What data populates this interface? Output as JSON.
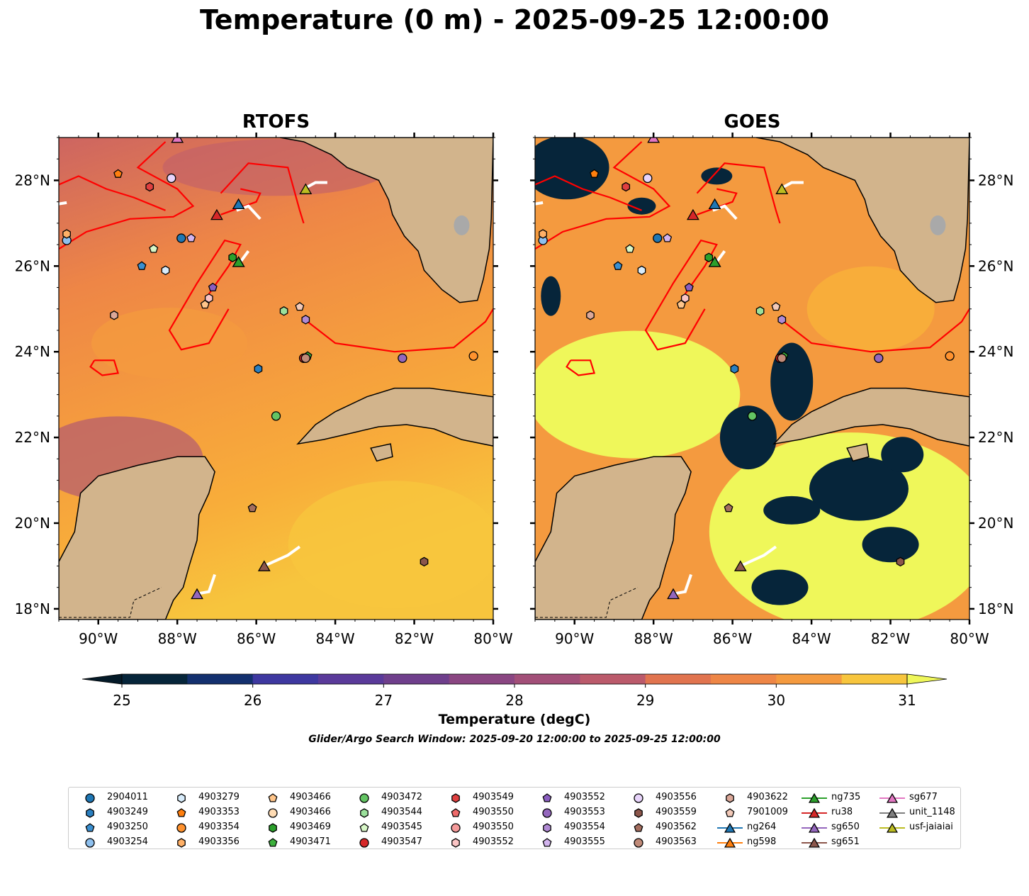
{
  "title": "Temperature (0 m) - 2025-09-25 12:00:00",
  "panels": [
    {
      "name": "RTOFS"
    },
    {
      "name": "GOES"
    }
  ],
  "axes": {
    "lon_ticks": [
      "90°W",
      "88°W",
      "86°W",
      "84°W",
      "82°W",
      "80°W"
    ],
    "lat_ticks": [
      "28°N",
      "26°N",
      "24°N",
      "22°N",
      "20°N",
      "18°N"
    ],
    "lon_range": [
      -91,
      -80
    ],
    "lat_range": [
      17.75,
      29
    ]
  },
  "colorbar": {
    "label": "Temperature (degC)",
    "ticks": [
      "25",
      "26",
      "27",
      "28",
      "29",
      "30",
      "31"
    ],
    "range": [
      25,
      31
    ],
    "step": 0.5,
    "extend": "both",
    "colors": [
      "#06253a",
      "#13306e",
      "#2b358f",
      "#3e38a0",
      "#5a3a9a",
      "#6f3f8c",
      "#8a4682",
      "#a24f78",
      "#bb5a6b",
      "#cd6561",
      "#e1744f",
      "#ee8646",
      "#f49a3f",
      "#f8ad3a",
      "#f7c53d",
      "#eff75a"
    ],
    "under_color": "#041a28",
    "over_color": "#eff75a"
  },
  "search_window": "Glider/Argo Search Window: 2025-09-20 12:00:00 to 2025-09-25 12:00:00",
  "legend": [
    {
      "label": "2904011",
      "marker": "circle",
      "color": "#1f77b4"
    },
    {
      "label": "4903249",
      "marker": "hexagon",
      "color": "#2a7fc0"
    },
    {
      "label": "4903250",
      "marker": "pentagon",
      "color": "#3a8fd0"
    },
    {
      "label": "4903254",
      "marker": "circle",
      "color": "#8ec0ee"
    },
    {
      "label": "4903279",
      "marker": "hexagon",
      "color": "#d8ecfb"
    },
    {
      "label": "4903353",
      "marker": "pentagon",
      "color": "#ff7f0e"
    },
    {
      "label": "4903354",
      "marker": "circle",
      "color": "#ff922e"
    },
    {
      "label": "4903356",
      "marker": "hexagon",
      "color": "#ffb066"
    },
    {
      "label": "4903466",
      "marker": "pentagon",
      "color": "#ffc58a"
    },
    {
      "label": "4903466",
      "marker": "circle",
      "color": "#ffdcb4"
    },
    {
      "label": "4903469",
      "marker": "hexagon",
      "color": "#2ca02c"
    },
    {
      "label": "4903471",
      "marker": "pentagon",
      "color": "#3cb03c"
    },
    {
      "label": "4903472",
      "marker": "circle",
      "color": "#63c463"
    },
    {
      "label": "4903544",
      "marker": "hexagon",
      "color": "#9be09b"
    },
    {
      "label": "4903545",
      "marker": "pentagon",
      "color": "#d8f7c8"
    },
    {
      "label": "4903547",
      "marker": "circle",
      "color": "#d62728"
    },
    {
      "label": "4903549",
      "marker": "hexagon",
      "color": "#e04040"
    },
    {
      "label": "4903550",
      "marker": "pentagon",
      "color": "#ee6a6a"
    },
    {
      "label": "4903550",
      "marker": "circle",
      "color": "#f49a9a"
    },
    {
      "label": "4903552",
      "marker": "hexagon",
      "color": "#fac4c4"
    },
    {
      "label": "4903552",
      "marker": "pentagon",
      "color": "#8a5ec0"
    },
    {
      "label": "4903553",
      "marker": "circle",
      "color": "#9467bd"
    },
    {
      "label": "4903554",
      "marker": "hexagon",
      "color": "#b08ad4"
    },
    {
      "label": "4903555",
      "marker": "pentagon",
      "color": "#d2b4ee"
    },
    {
      "label": "4903556",
      "marker": "circle",
      "color": "#e8d4fb"
    },
    {
      "label": "4903559",
      "marker": "hexagon",
      "color": "#8c564b"
    },
    {
      "label": "4903562",
      "marker": "pentagon",
      "color": "#a46e5f"
    },
    {
      "label": "4903563",
      "marker": "circle",
      "color": "#c08a78"
    },
    {
      "label": "4903622",
      "marker": "hexagon",
      "color": "#dba899"
    },
    {
      "label": "7901009",
      "marker": "pentagon",
      "color": "#f2c9b8"
    },
    {
      "label": "ng264",
      "marker": "triangle",
      "color": "#1f77b4"
    },
    {
      "label": "ng598",
      "marker": "triangle",
      "color": "#ff7f0e"
    },
    {
      "label": "ng735",
      "marker": "triangle",
      "color": "#2ca02c"
    },
    {
      "label": "ru38",
      "marker": "triangle",
      "color": "#d62728"
    },
    {
      "label": "sg650",
      "marker": "triangle",
      "color": "#9467bd"
    },
    {
      "label": "sg651",
      "marker": "triangle",
      "color": "#8c564b"
    },
    {
      "label": "sg677",
      "marker": "triangle",
      "color": "#e377c2"
    },
    {
      "label": "unit_1148",
      "marker": "triangle",
      "color": "#7f7f7f"
    },
    {
      "label": "usf-jaiaiai",
      "marker": "triangle",
      "color": "#bcbd22"
    }
  ],
  "platforms": [
    {
      "id": "2904011",
      "lon": -87.9,
      "lat": 26.65
    },
    {
      "id": "4903249",
      "lon": -85.95,
      "lat": 23.6
    },
    {
      "id": "4903250",
      "lon": -88.9,
      "lat": 26.0
    },
    {
      "id": "4903254",
      "lon": -90.8,
      "lat": 26.6
    },
    {
      "id": "4903279",
      "lon": -88.3,
      "lat": 25.9
    },
    {
      "id": "4903353",
      "lon": -89.5,
      "lat": 28.15
    },
    {
      "id": "4903354",
      "lon": -80.5,
      "lat": 23.9
    },
    {
      "id": "4903356",
      "lon": -90.8,
      "lat": 26.75
    },
    {
      "id": "4903466",
      "lon": -87.3,
      "lat": 25.1
    },
    {
      "id": "4903469",
      "lon": -86.6,
      "lat": 26.2
    },
    {
      "id": "4903471",
      "lon": -84.7,
      "lat": 23.9
    },
    {
      "id": "4903472",
      "lon": -85.5,
      "lat": 22.5
    },
    {
      "id": "4903544",
      "lon": -85.3,
      "lat": 24.95
    },
    {
      "id": "4903545",
      "lon": -88.6,
      "lat": 26.4
    },
    {
      "id": "4903547",
      "lon": -84.8,
      "lat": 23.85
    },
    {
      "id": "4903549",
      "lon": -88.7,
      "lat": 27.85
    },
    {
      "id": "4903552",
      "lon": -87.2,
      "lat": 25.25
    },
    {
      "id": "4903552b",
      "lon": -87.1,
      "lat": 25.5
    },
    {
      "id": "4903553",
      "lon": -82.3,
      "lat": 23.85
    },
    {
      "id": "4903554",
      "lon": -84.75,
      "lat": 24.75
    },
    {
      "id": "4903555",
      "lon": -87.65,
      "lat": 26.65
    },
    {
      "id": "4903556",
      "lon": -88.15,
      "lat": 28.05
    },
    {
      "id": "4903559",
      "lon": -81.75,
      "lat": 19.1
    },
    {
      "id": "4903562",
      "lon": -86.1,
      "lat": 20.35
    },
    {
      "id": "4903563",
      "lon": -84.75,
      "lat": 23.85
    },
    {
      "id": "4903622",
      "lon": -89.6,
      "lat": 24.85
    },
    {
      "id": "7901009",
      "lon": -84.9,
      "lat": 25.05
    },
    {
      "id": "ng264",
      "lon": -86.45,
      "lat": 27.45
    },
    {
      "id": "ng598",
      "lon": -86.45,
      "lat": 26.1
    },
    {
      "id": "ng735",
      "lon": -86.45,
      "lat": 26.1
    },
    {
      "id": "ru38",
      "lon": -87.0,
      "lat": 27.2
    },
    {
      "id": "sg650",
      "lon": -87.5,
      "lat": 18.35
    },
    {
      "id": "sg651",
      "lon": -85.8,
      "lat": 19.0
    },
    {
      "id": "sg677",
      "lon": -88.0,
      "lat": 29.0
    },
    {
      "id": "usf-jaiaiai",
      "lon": -84.75,
      "lat": 27.8
    }
  ]
}
